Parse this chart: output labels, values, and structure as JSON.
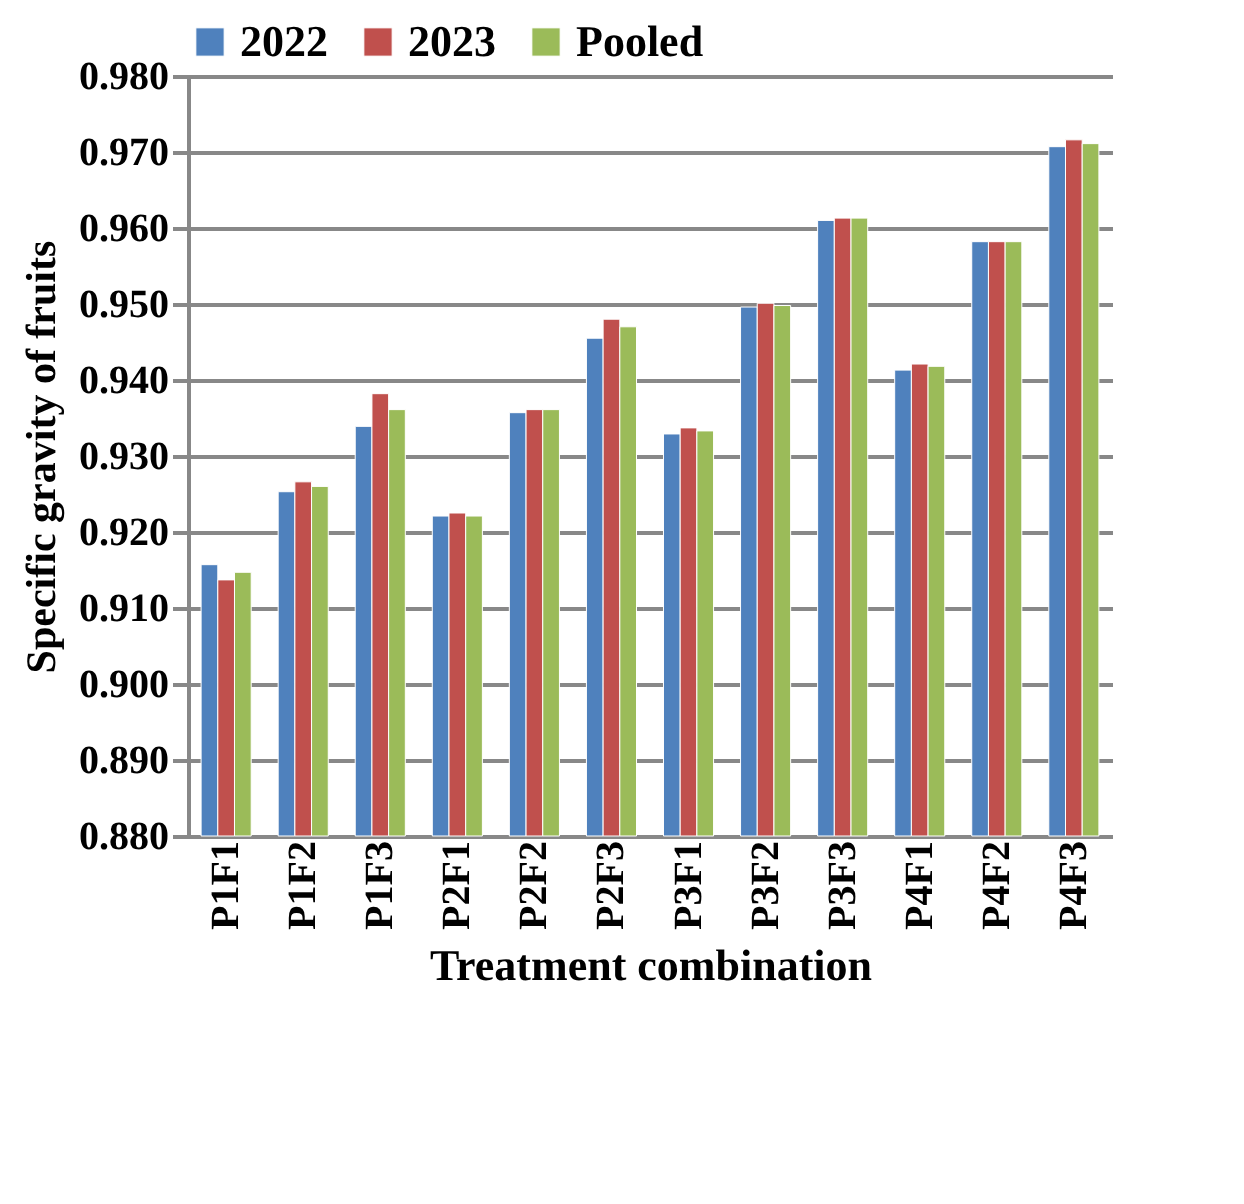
{
  "chart_data": {
    "type": "bar",
    "xlabel": "Treatment combination",
    "ylabel": "Specific gravity of fruits",
    "categories": [
      "P1F1",
      "P1F2",
      "P1F3",
      "P2F1",
      "P2F2",
      "P2F3",
      "P3F1",
      "P3F2",
      "P3F3",
      "P4F1",
      "P4F2",
      "P4F3"
    ],
    "series": [
      {
        "name": "2022",
        "color": "#4f81bd",
        "values": [
          0.9157,
          0.9253,
          0.9339,
          0.9221,
          0.9357,
          0.9455,
          0.9329,
          0.9496,
          0.961,
          0.9413,
          0.9582,
          0.9707
        ]
      },
      {
        "name": "2023",
        "color": "#c0504d",
        "values": [
          0.9137,
          0.9266,
          0.9382,
          0.9225,
          0.9361,
          0.948,
          0.9337,
          0.9501,
          0.9613,
          0.9421,
          0.9582,
          0.9716
        ]
      },
      {
        "name": "Pooled",
        "color": "#9bbb59",
        "values": [
          0.9147,
          0.926,
          0.9361,
          0.9221,
          0.9361,
          0.947,
          0.9333,
          0.9498,
          0.9613,
          0.9418,
          0.9582,
          0.9711
        ]
      }
    ],
    "ylim": [
      0.88,
      0.98
    ],
    "yticks": [
      {
        "value": 0.88,
        "label": "0.880"
      },
      {
        "value": 0.89,
        "label": "0.890"
      },
      {
        "value": 0.9,
        "label": "0.900"
      },
      {
        "value": 0.91,
        "label": "0.910"
      },
      {
        "value": 0.92,
        "label": "0.920"
      },
      {
        "value": 0.93,
        "label": "0.930"
      },
      {
        "value": 0.94,
        "label": "0.940"
      },
      {
        "value": 0.95,
        "label": "0.950"
      },
      {
        "value": 0.96,
        "label": "0.960"
      },
      {
        "value": 0.97,
        "label": "0.970"
      },
      {
        "value": 0.98,
        "label": "0.980"
      }
    ],
    "grid": "y",
    "legend": "top"
  }
}
